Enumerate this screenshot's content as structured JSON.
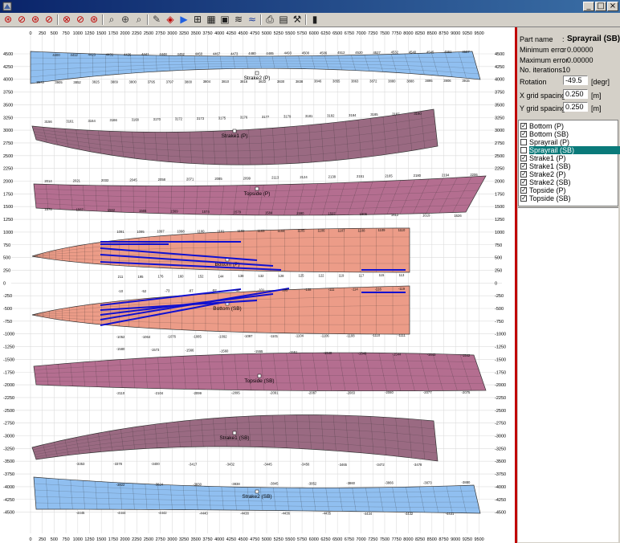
{
  "window": {
    "buttons": [
      "_",
      "□",
      "×"
    ]
  },
  "toolbar": {
    "icons": [
      "zoom-fit-icon",
      "rotate-left-icon",
      "rotate-right-icon",
      "refresh-icon",
      "rotate-cw-icon",
      "rotate-ccw-icon",
      "mirror-icon",
      "pan-icon",
      "zoom-in-icon",
      "zoom-out-icon",
      "pointer-icon",
      "rubber-icon",
      "play-icon",
      "node-icon",
      "grid-icon",
      "camera-icon",
      "layers-icon",
      "wave-icon",
      "print-icon",
      "export-icon",
      "tool-icon",
      "exit-icon"
    ]
  },
  "plot": {
    "top_axis_labels": [
      "0",
      "250",
      "500",
      "750",
      "1000",
      "1250",
      "1500",
      "1750",
      "2000",
      "2250",
      "2500",
      "2750",
      "3000",
      "3250",
      "3500",
      "3750",
      "4000",
      "4250",
      "4500",
      "4750",
      "5000",
      "5250",
      "5500",
      "5750",
      "6000",
      "6250",
      "6500",
      "6750",
      "7000",
      "7250",
      "7500",
      "7750",
      "8000",
      "8250",
      "8500",
      "8750",
      "9000",
      "9250",
      "9500"
    ],
    "bottom_axis_labels": [
      "0",
      "250",
      "500",
      "750",
      "1000",
      "1250",
      "1500",
      "1750",
      "2000",
      "2250",
      "2500",
      "2750",
      "3000",
      "3250",
      "3500",
      "3750",
      "4000",
      "4250",
      "4500",
      "4750",
      "5000",
      "5250",
      "5500",
      "5750",
      "6000",
      "6250",
      "6500",
      "6750",
      "7000",
      "7250",
      "7500",
      "7750",
      "8000",
      "8250",
      "8500",
      "8750",
      "9000",
      "9250",
      "9500"
    ],
    "side_axis_labels": [
      "4500",
      "4250",
      "4000",
      "3750",
      "3500",
      "3250",
      "3000",
      "2750",
      "2500",
      "2250",
      "2000",
      "1750",
      "1500",
      "1250",
      "1000",
      "750",
      "500",
      "250",
      "0",
      "-250",
      "-500",
      "-750",
      "-1000",
      "-1250",
      "-1500",
      "-1750",
      "-2000",
      "-2250",
      "-2500",
      "-2750",
      "-3000",
      "-3250",
      "-3500",
      "-3750",
      "-4000",
      "-4250",
      "-4500"
    ],
    "parts": [
      {
        "label": "Strake2 (P)",
        "color": "#90bff0"
      },
      {
        "label": "Strake1 (P)",
        "color": "#9a6a82"
      },
      {
        "label": "Topside (P)",
        "color": "#b46e90"
      },
      {
        "label": "Bottom (P)",
        "color": "#ec9c88"
      },
      {
        "label": "Bottom (SB)",
        "color": "#ec9c88"
      },
      {
        "label": "Topside (SB)",
        "color": "#b46e90"
      },
      {
        "label": "Strake1 (SB)",
        "color": "#9a6a82"
      },
      {
        "label": "Strake2 (SB)",
        "color": "#90bff0"
      }
    ],
    "edge_numbers": {
      "strake2_p_top": [
        "4400",
        "4412",
        "4423",
        "4431",
        "4436",
        "4441",
        "4448",
        "4452",
        "4460",
        "4467",
        "4473",
        "4480",
        "4485",
        "4493",
        "4500",
        "4506",
        "4512",
        "4520",
        "4527",
        "4532",
        "4540",
        "4545",
        "4551",
        "4557"
      ],
      "strake2_p_bottom": [
        "3973",
        "3905",
        "3852",
        "3825",
        "3809",
        "3800",
        "3795",
        "3797",
        "3800",
        "3804",
        "3810",
        "3816",
        "3822",
        "3830",
        "3838",
        "3846",
        "3855",
        "3863",
        "3872",
        "3880",
        "3888",
        "3895",
        "3906",
        "3915"
      ],
      "strake1_p_top": [
        "3156",
        "3161",
        "3164",
        "3166",
        "3168",
        "3170",
        "3172",
        "3173",
        "3175",
        "3176",
        "3177",
        "3179",
        "3181",
        "3182",
        "3184",
        "3185",
        "3187",
        "3190"
      ],
      "topside_p_top": [
        "2014",
        "2021",
        "2032",
        "2045",
        "2058",
        "2071",
        "2085",
        "2099",
        "2113",
        "2124",
        "2138",
        "2151",
        "2165",
        "2180",
        "2194",
        "2206"
      ],
      "topside_p_bottom": [
        "1576",
        "1567",
        "1562",
        "1565",
        "1569",
        "1574",
        "1579",
        "1584",
        "1590",
        "1597",
        "1605",
        "1612",
        "1619",
        "1626"
      ],
      "bottom_p_top": [
        "1091",
        "1095",
        "1097",
        "1098",
        "1100",
        "1101",
        "1102",
        "1103",
        "1104",
        "1105",
        "1106",
        "1107",
        "1108",
        "1109",
        "1110"
      ],
      "bottom_p_bottom": [
        "211",
        "195",
        "176",
        "160",
        "152",
        "144",
        "138",
        "132",
        "128",
        "125",
        "122",
        "119",
        "117",
        "115",
        "113"
      ],
      "bottom_sb_top": [
        "-10",
        "-52",
        "-73",
        "-87",
        "-92",
        "-97",
        "-101",
        "-105",
        "-108",
        "-111",
        "-114",
        "-116",
        "-119"
      ],
      "bottom_sb_bottom": [
        "-1052",
        "-1064",
        "-1076",
        "-1085",
        "-1092",
        "-1097",
        "-1101",
        "-1104",
        "-1106",
        "-1108",
        "-1110",
        "-1111"
      ],
      "topside_sb_top": [
        "-1580",
        "-1573",
        "-1566",
        "-1560",
        "-1555",
        "-1551",
        "-1548",
        "-1546",
        "-1544",
        "-1543",
        "-1542"
      ],
      "topside_sb_bottom": [
        "-2110",
        "-2104",
        "-2099",
        "-2095",
        "-2091",
        "-2087",
        "-2083",
        "-2080",
        "-2077",
        "-2075"
      ],
      "strake1_sb_bottom": [
        "-3353",
        "-3378",
        "-3400",
        "-3417",
        "-3432",
        "-3445",
        "-3456",
        "-3465",
        "-3472",
        "-3478"
      ],
      "strake2_sb_top": [
        "-3822",
        "-3824",
        "-3830",
        "-3838",
        "-3845",
        "-3852",
        "-3860",
        "-3866",
        "-3873",
        "-3880"
      ],
      "strake2_sb_bottom": [
        "-4445",
        "-4444",
        "-4442",
        "-4440",
        "-4438",
        "-4436",
        "-4435",
        "-4434",
        "-4432",
        "-4431"
      ]
    }
  },
  "panel": {
    "part_name_label": "Part name",
    "part_name_value": "Sprayrail (SB)",
    "min_error_label": "Minimum error",
    "min_error_value": "0.00000",
    "max_error_label": "Maximum error",
    "max_error_value": "0.00000",
    "iterations_label": "No. iterations",
    "iterations_value": "10",
    "rotation_label": "Rotation",
    "rotation_value": "-49.5",
    "rotation_unit": "[degr]",
    "xgrid_label": "X grid spacing",
    "xgrid_value": "0.250",
    "xgrid_unit": "[m]",
    "ygrid_label": "Y grid spacing",
    "ygrid_value": "0.250",
    "ygrid_unit": "[m]",
    "colon": ":"
  },
  "parts_list": [
    {
      "label": "Bottom (P)",
      "checked": true,
      "selected": false
    },
    {
      "label": "Bottom (SB)",
      "checked": true,
      "selected": false
    },
    {
      "label": "Sprayrail (P)",
      "checked": false,
      "selected": false
    },
    {
      "label": "Sprayrail (SB)",
      "checked": false,
      "selected": true
    },
    {
      "label": "Strake1 (P)",
      "checked": true,
      "selected": false
    },
    {
      "label": "Strake1 (SB)",
      "checked": true,
      "selected": false
    },
    {
      "label": "Strake2 (P)",
      "checked": true,
      "selected": false
    },
    {
      "label": "Strake2 (SB)",
      "checked": true,
      "selected": false
    },
    {
      "label": "Topside (P)",
      "checked": true,
      "selected": false
    },
    {
      "label": "Topside (SB)",
      "checked": true,
      "selected": false
    }
  ]
}
